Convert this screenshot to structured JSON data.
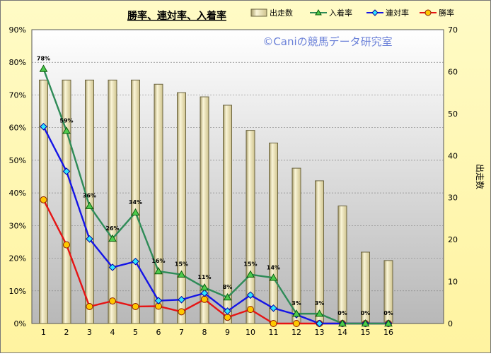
{
  "chart_data": {
    "type": "bar",
    "title": "勝率、連対率、入着率",
    "watermark": "©Caniの競馬データ研究室",
    "categories": [
      "1",
      "2",
      "3",
      "4",
      "5",
      "6",
      "7",
      "8",
      "9",
      "10",
      "11",
      "12",
      "13",
      "14",
      "15",
      "16"
    ],
    "bar_series": {
      "name": "出走数",
      "axis": "right",
      "values": [
        58,
        58,
        58,
        58,
        58,
        57,
        55,
        54,
        52,
        46,
        43,
        37,
        34,
        28,
        17,
        15
      ]
    },
    "line_series": [
      {
        "name": "入着率",
        "axis": "left",
        "color": "#2e8b57",
        "marker": "triangle",
        "values": [
          78,
          59,
          36,
          26,
          34,
          16,
          15,
          11,
          8,
          15,
          14,
          3,
          3,
          0,
          0,
          0
        ],
        "data_labels": [
          "78%",
          "59%",
          "36%",
          "26%",
          "34%",
          "16%",
          "15%",
          "11%",
          "8%",
          "15%",
          "14%",
          "3%",
          "3%",
          "0%",
          "0%",
          "0%"
        ]
      },
      {
        "name": "連対率",
        "axis": "left",
        "color": "#1414e6",
        "marker": "diamond",
        "values": [
          60.3,
          46.6,
          25.9,
          17.2,
          19.0,
          7.0,
          7.3,
          9.3,
          3.8,
          8.7,
          4.7,
          2.7,
          0,
          0,
          0,
          0
        ]
      },
      {
        "name": "勝率",
        "axis": "left",
        "color": "#e61414",
        "marker": "circle",
        "values": [
          37.9,
          24.1,
          5.2,
          6.9,
          5.2,
          5.3,
          3.6,
          7.4,
          1.9,
          4.3,
          0,
          0,
          0,
          0,
          0,
          0
        ]
      }
    ],
    "y_left": {
      "min": 0,
      "max": 90,
      "step": 10,
      "tick_labels": [
        "0%",
        "10%",
        "20%",
        "30%",
        "40%",
        "50%",
        "60%",
        "70%",
        "80%",
        "90%"
      ]
    },
    "y_right": {
      "min": 0,
      "max": 70,
      "step": 10,
      "label": "出走数",
      "tick_labels": [
        "0",
        "10",
        "20",
        "30",
        "40",
        "50",
        "60",
        "70"
      ]
    },
    "grid": "horizontal dashed",
    "legend_position": "top-right",
    "colors": {
      "background_top": "#fffbc6",
      "background_bottom": "#fff3a0",
      "plot_top": "#ffffff",
      "plot_bottom": "#b8b8b8",
      "bar_fill": "#f0e6b0",
      "bar_edge": "#6b6440"
    }
  }
}
